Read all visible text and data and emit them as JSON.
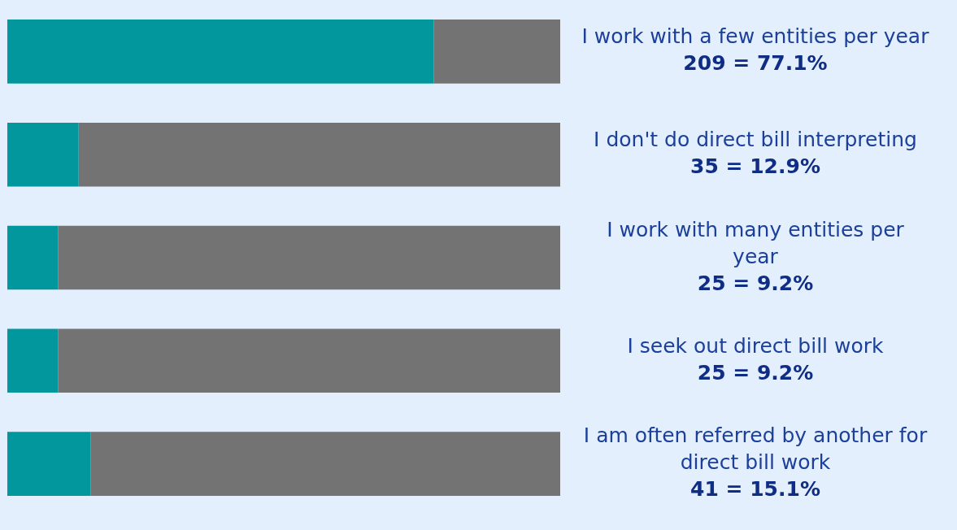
{
  "chart_data": {
    "type": "bar",
    "orientation": "horizontal",
    "stacked": true,
    "categories": [
      "I work with a few entities per year",
      "I don't do direct bill interpreting",
      "I work with many entities per year",
      "I seek out direct bill work",
      "I am often referred by another for direct bill work"
    ],
    "series": [
      {
        "color": "#02979d",
        "values": [
          77.1,
          12.9,
          9.2,
          9.2,
          15.1
        ],
        "value_labels": [
          "209 = 77.1%",
          "35 = 12.9%",
          "25 = 9.2%",
          "25 = 9.2%",
          "41 = 15.1%"
        ]
      },
      {
        "color": "#737373",
        "values": [
          22.9,
          87.1,
          90.8,
          90.8,
          84.9
        ]
      }
    ],
    "xlim": [
      0,
      100
    ],
    "tick_labels": false,
    "legend": false
  }
}
